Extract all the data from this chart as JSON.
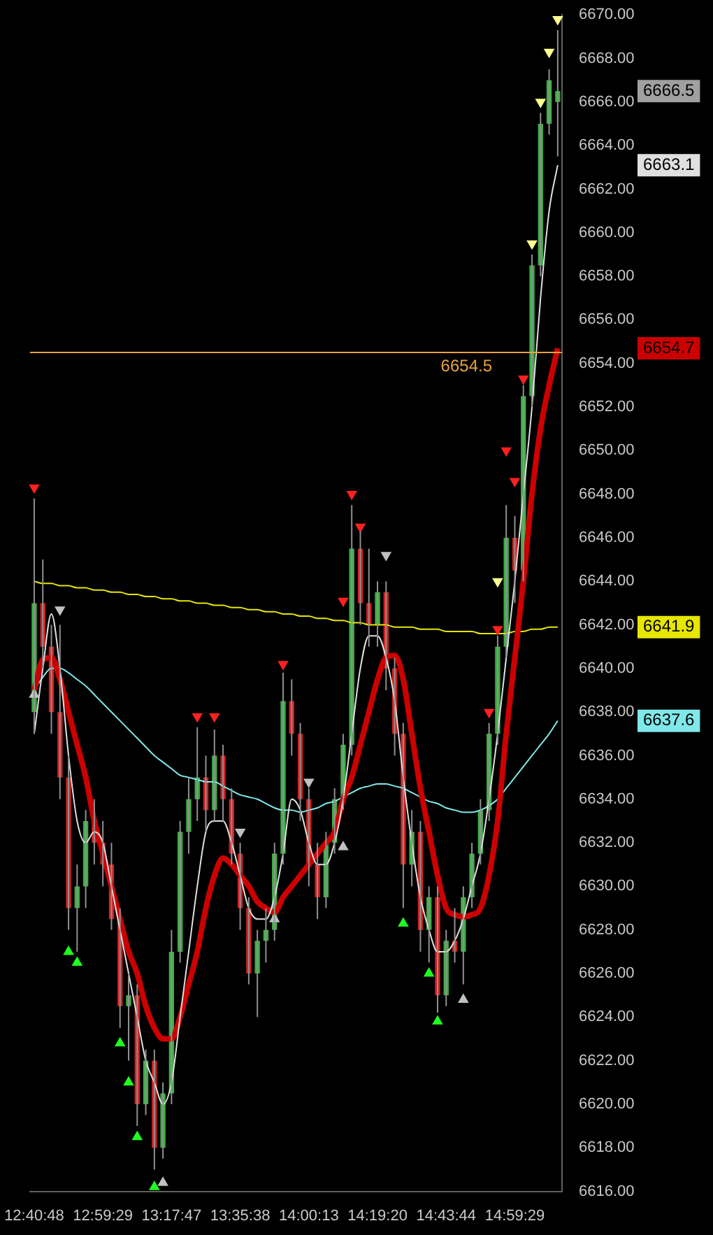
{
  "chart_data": {
    "type": "candlestick",
    "categories": [
      "12:40:48",
      null,
      null,
      null,
      null,
      null,
      null,
      null,
      "12:59:29",
      null,
      null,
      null,
      null,
      null,
      null,
      null,
      "13:17:47",
      null,
      null,
      null,
      null,
      null,
      null,
      null,
      "13:35:38",
      null,
      null,
      null,
      null,
      null,
      null,
      null,
      "14:00:13",
      null,
      null,
      null,
      null,
      null,
      null,
      null,
      "14:19:20",
      null,
      null,
      null,
      null,
      null,
      null,
      null,
      "14:43:44",
      null,
      null,
      null,
      null,
      null,
      null,
      null,
      "14:59:29",
      null,
      null,
      null,
      null,
      null
    ],
    "ohlc": [
      [
        6638,
        6647.8,
        6637,
        6643
      ],
      [
        6643,
        6645,
        6640,
        6641
      ],
      [
        6641,
        6642,
        6637,
        6638
      ],
      [
        6638,
        6642,
        6634,
        6635
      ],
      [
        6635,
        6636,
        6628,
        6629
      ],
      [
        6629,
        6631,
        6627,
        6630
      ],
      [
        6630,
        6633.5,
        6629,
        6633
      ],
      [
        6633,
        6634,
        6631,
        6632
      ],
      [
        6632,
        6633,
        6630,
        6631
      ],
      [
        6631,
        6632,
        6628,
        6628.5
      ],
      [
        6628.5,
        6629,
        6623.5,
        6624.5
      ],
      [
        6624.5,
        6626,
        6622,
        6625
      ],
      [
        6625,
        6625.5,
        6619,
        6620
      ],
      [
        6620,
        6622.5,
        6619.5,
        6622
      ],
      [
        6622,
        6622.5,
        6617,
        6618
      ],
      [
        6618,
        6621,
        6617.5,
        6620.5
      ],
      [
        6620.5,
        6628,
        6620,
        6627
      ],
      [
        6627,
        6633,
        6626.5,
        6632.5
      ],
      [
        6632.5,
        6635,
        6631.5,
        6634
      ],
      [
        6634,
        6637.3,
        6633,
        6635
      ],
      [
        6635,
        6636,
        6632.5,
        6633.5
      ],
      [
        6633.5,
        6637.2,
        6633,
        6636
      ],
      [
        6636,
        6636.5,
        6633,
        6634
      ],
      [
        6634,
        6634.5,
        6631,
        6631.5
      ],
      [
        6631.5,
        6632,
        6628,
        6629
      ],
      [
        6629,
        6629.5,
        6625.5,
        6626
      ],
      [
        6626,
        6628,
        6624,
        6627.5
      ],
      [
        6627.5,
        6629,
        6626.5,
        6628
      ],
      [
        6628,
        6632,
        6627.5,
        6631.5
      ],
      [
        6631.5,
        6639.8,
        6631,
        6638.5
      ],
      [
        6638.5,
        6639.5,
        6636,
        6637
      ],
      [
        6637,
        6637.5,
        6633,
        6634
      ],
      [
        6634,
        6634.5,
        6630,
        6631
      ],
      [
        6631,
        6632,
        6628.5,
        6629.5
      ],
      [
        6629.5,
        6632.5,
        6629,
        6632
      ],
      [
        6632,
        6634.5,
        6631.5,
        6634
      ],
      [
        6634,
        6637,
        6633.5,
        6636.5
      ],
      [
        6636.5,
        6647.5,
        6636,
        6645.5
      ],
      [
        6645.5,
        6646.3,
        6642,
        6643
      ],
      [
        6643,
        6645.5,
        6641,
        6642
      ],
      [
        6642,
        6644,
        6641,
        6643.5
      ],
      [
        6643.5,
        6644,
        6639,
        6640
      ],
      [
        6640,
        6640.5,
        6636,
        6637
      ],
      [
        6637,
        6637.5,
        6629,
        6631
      ],
      [
        6631,
        6633.5,
        6630,
        6632.5
      ],
      [
        6632.5,
        6633,
        6627,
        6628
      ],
      [
        6628,
        6630,
        6626.5,
        6629.5
      ],
      [
        6629.5,
        6630,
        6624.2,
        6625
      ],
      [
        6625,
        6628,
        6624.5,
        6627.5
      ],
      [
        6627.5,
        6629,
        6626.5,
        6627
      ],
      [
        6627,
        6630,
        6625.5,
        6629.5
      ],
      [
        6629.5,
        6632,
        6629,
        6631.5
      ],
      [
        6631.5,
        6634,
        6631,
        6633.5
      ],
      [
        6633.5,
        6637.5,
        6633,
        6637
      ],
      [
        6637,
        6641.5,
        6636.5,
        6641
      ],
      [
        6641,
        6647.5,
        6640.5,
        6646
      ],
      [
        6646,
        6647,
        6643,
        6644.5
      ],
      [
        6644.5,
        6653,
        6644,
        6652.5
      ],
      [
        6652.5,
        6659,
        6652,
        6658.5
      ],
      [
        6658.5,
        6665.5,
        6658,
        6665
      ],
      [
        6665,
        6667.5,
        6664.5,
        6667
      ],
      [
        6666,
        6669.3,
        6663.5,
        6666.5
      ]
    ],
    "colors": [
      "#3cb043",
      "#d42020",
      "#d42020",
      "#d42020",
      "#d42020",
      "#3cb043",
      "#3cb043",
      "#d42020",
      "#d42020",
      "#d42020",
      "#d42020",
      "#3cb043",
      "#d42020",
      "#3cb043",
      "#d42020",
      "#3cb043",
      "#3cb043",
      "#3cb043",
      "#3cb043",
      "#3cb043",
      "#d42020",
      "#3cb043",
      "#d42020",
      "#d42020",
      "#d42020",
      "#d42020",
      "#3cb043",
      "#3cb043",
      "#3cb043",
      "#3cb043",
      "#d42020",
      "#d42020",
      "#d42020",
      "#d42020",
      "#3cb043",
      "#3cb043",
      "#3cb043",
      "#3cb043",
      "#d42020",
      "#d42020",
      "#3cb043",
      "#d42020",
      "#d42020",
      "#d42020",
      "#3cb043",
      "#d42020",
      "#3cb043",
      "#d42020",
      "#3cb043",
      "#d42020",
      "#3cb043",
      "#3cb043",
      "#3cb043",
      "#3cb043",
      "#3cb043",
      "#3cb043",
      "#d42020",
      "#3cb043",
      "#3cb043",
      "#3cb043",
      "#3cb043",
      "#3cb043"
    ],
    "ylim": [
      6616,
      6670
    ],
    "yticks": [
      {
        "value": 6616,
        "label": "6616.00"
      },
      {
        "value": 6618,
        "label": "6618.00"
      },
      {
        "value": 6620,
        "label": "6620.00"
      },
      {
        "value": 6622,
        "label": "6622.00"
      },
      {
        "value": 6624,
        "label": "6624.00"
      },
      {
        "value": 6626,
        "label": "6626.00"
      },
      {
        "value": 6628,
        "label": "6628.00"
      },
      {
        "value": 6630,
        "label": "6630.00"
      },
      {
        "value": 6632,
        "label": "6632.00"
      },
      {
        "value": 6634,
        "label": "6634.00"
      },
      {
        "value": 6636,
        "label": "6636.00"
      },
      {
        "value": 6638,
        "label": "6638.00"
      },
      {
        "value": 6640,
        "label": "6640.00"
      },
      {
        "value": 6642,
        "label": "6642.00"
      },
      {
        "value": 6644,
        "label": "6644.00"
      },
      {
        "value": 6646,
        "label": "6646.00"
      },
      {
        "value": 6648,
        "label": "6648.00"
      },
      {
        "value": 6650,
        "label": "6650.00"
      },
      {
        "value": 6652,
        "label": "6652.00"
      },
      {
        "value": 6654,
        "label": "6654.00"
      },
      {
        "value": 6656,
        "label": "6656.00"
      },
      {
        "value": 6658,
        "label": "6658.00"
      },
      {
        "value": 6660,
        "label": "6660.00"
      },
      {
        "value": 6662,
        "label": "6662.00"
      },
      {
        "value": 6664,
        "label": "6664.00"
      },
      {
        "value": 6666,
        "label": "6666.00"
      },
      {
        "value": 6668,
        "label": "6668.00"
      },
      {
        "value": 6670,
        "label": "6670.00"
      }
    ],
    "grid": false,
    "series": [
      {
        "type": "line",
        "color": "#e0e0e0",
        "marker": "none",
        "values": [
          6637,
          6640,
          6642.5,
          6640,
          6636,
          6633,
          6632,
          6632.5,
          6632,
          6630,
          6628,
          6626,
          6624,
          6622,
          6621,
          6620,
          6621,
          6624,
          6627,
          6630,
          6632.5,
          6633,
          6633,
          6632,
          6630.5,
          6629,
          6628.5,
          6628.5,
          6629.5,
          6631.5,
          6634,
          6633.5,
          6632,
          6631,
          6631,
          6632,
          6634,
          6637,
          6640,
          6641.5,
          6641.5,
          6640.5,
          6638.5,
          6635,
          6632,
          6629.5,
          6628,
          6627,
          6627,
          6627.5,
          6628.5,
          6630,
          6631.5,
          6634,
          6637,
          6640.5,
          6644,
          6648,
          6652,
          6657,
          6661,
          6663.1
        ]
      },
      {
        "type": "line",
        "color": "#cc0000",
        "marker": "none",
        "values": [
          6639,
          6640.4,
          6640.5,
          6639.5,
          6638,
          6636.5,
          6635,
          6633,
          6631.5,
          6630,
          6628.5,
          6627,
          6626,
          6624.5,
          6623.5,
          6623,
          6623,
          6624,
          6625.5,
          6627,
          6629,
          6630.5,
          6631.3,
          6631,
          6630.5,
          6630,
          6629.3,
          6629,
          6628.8,
          6629.5,
          6630,
          6630.5,
          6631,
          6631.5,
          6632,
          6632.5,
          6634,
          6635,
          6636.5,
          6638,
          6639.5,
          6640.5,
          6640.6,
          6639.5,
          6637,
          6634.5,
          6632.5,
          6630.5,
          6629,
          6628.7,
          6628.6,
          6628.7,
          6629,
          6630.5,
          6633,
          6637,
          6640.5,
          6644,
          6648,
          6651,
          6653,
          6654.7
        ]
      },
      {
        "type": "line",
        "color": "#e6e600",
        "marker": "none",
        "values": [
          6644.0,
          6643.9,
          6643.9,
          6643.8,
          6643.8,
          6643.7,
          6643.7,
          6643.6,
          6643.6,
          6643.5,
          6643.5,
          6643.4,
          6643.4,
          6643.3,
          6643.3,
          6643.2,
          6643.2,
          6643.1,
          6643.1,
          6643.0,
          6643.0,
          6642.9,
          6642.9,
          6642.8,
          6642.8,
          6642.7,
          6642.7,
          6642.6,
          6642.6,
          6642.5,
          6642.5,
          6642.4,
          6642.4,
          6642.3,
          6642.3,
          6642.2,
          6642.2,
          6642.1,
          6642.1,
          6642.0,
          6642.0,
          6642.0,
          6641.9,
          6641.9,
          6641.9,
          6641.8,
          6641.8,
          6641.8,
          6641.7,
          6641.7,
          6641.7,
          6641.7,
          6641.6,
          6641.6,
          6641.6,
          6641.6,
          6641.7,
          6641.7,
          6641.8,
          6641.8,
          6641.9,
          6641.9
        ]
      },
      {
        "type": "line",
        "color": "#80e8e8",
        "marker": "none",
        "values": [
          6639,
          6639.6,
          6640,
          6640,
          6639.8,
          6639.5,
          6639.2,
          6638.8,
          6638.4,
          6638,
          6637.6,
          6637.2,
          6636.8,
          6636.4,
          6636,
          6635.7,
          6635.4,
          6635.1,
          6635,
          6634.9,
          6634.8,
          6634.8,
          6634.6,
          6634.4,
          6634.2,
          6634.1,
          6634,
          6633.8,
          6633.6,
          6633.5,
          6633.5,
          6633.4,
          6633.5,
          6633.6,
          6633.8,
          6633.9,
          6634.1,
          6634.3,
          6634.5,
          6634.6,
          6634.7,
          6634.7,
          6634.6,
          6634.5,
          6634.3,
          6634.1,
          6633.9,
          6633.8,
          6633.6,
          6633.5,
          6633.4,
          6633.4,
          6633.5,
          6633.7,
          6634,
          6634.5,
          6635,
          6635.5,
          6636,
          6636.5,
          6637,
          6637.6
        ]
      },
      {
        "type": "scatter",
        "color": "#ff2020",
        "marker": "triangle",
        "values": [
          6648.3,
          null,
          null,
          null,
          null,
          null,
          null,
          null,
          null,
          null,
          null,
          null,
          null,
          null,
          null,
          null,
          null,
          null,
          null,
          6637.8,
          null,
          6637.8,
          null,
          null,
          null,
          null,
          null,
          null,
          null,
          6640.2,
          null,
          null,
          null,
          null,
          null,
          null,
          6643.1,
          6648,
          6646.5,
          null,
          null,
          null,
          null,
          null,
          null,
          null,
          null,
          null,
          null,
          null,
          null,
          null,
          null,
          6638,
          6641.8,
          6650,
          6648.6,
          6653.3,
          null,
          null,
          null,
          null
        ]
      },
      {
        "type": "scatter",
        "color": "#20ff20",
        "marker": "triangle",
        "values": [
          null,
          null,
          null,
          null,
          6627,
          6626.5,
          null,
          null,
          null,
          null,
          6622.8,
          6621,
          6618.5,
          null,
          6616.2,
          null,
          null,
          null,
          null,
          null,
          null,
          null,
          null,
          null,
          null,
          null,
          null,
          null,
          null,
          null,
          null,
          null,
          null,
          null,
          null,
          null,
          null,
          null,
          null,
          null,
          null,
          null,
          null,
          6628.3,
          null,
          null,
          6626,
          6623.8,
          null,
          null,
          null,
          null,
          null,
          null,
          null,
          null,
          null,
          null,
          null,
          null,
          null,
          null
        ]
      },
      {
        "type": "scatter",
        "color": "#ffff90",
        "marker": "triangle",
        "values": [
          null,
          null,
          null,
          null,
          null,
          null,
          null,
          null,
          null,
          null,
          null,
          null,
          null,
          null,
          null,
          null,
          null,
          null,
          null,
          null,
          null,
          null,
          null,
          null,
          null,
          null,
          null,
          null,
          null,
          null,
          null,
          null,
          null,
          null,
          null,
          null,
          null,
          null,
          null,
          null,
          null,
          null,
          null,
          null,
          null,
          null,
          null,
          null,
          null,
          null,
          null,
          null,
          null,
          null,
          6644,
          null,
          null,
          null,
          6659.5,
          6666,
          6668.3,
          6669.8
        ]
      },
      {
        "type": "scatter",
        "color": "#c0c0c0",
        "marker": "triangle",
        "values": [
          null,
          null,
          null,
          6642.7,
          null,
          null,
          null,
          null,
          null,
          null,
          null,
          null,
          null,
          null,
          null,
          null,
          null,
          null,
          null,
          null,
          null,
          null,
          null,
          null,
          6632.5,
          null,
          null,
          null,
          null,
          null,
          null,
          null,
          6634.8,
          null,
          null,
          null,
          null,
          null,
          null,
          null,
          null,
          6645.2,
          null,
          null,
          null,
          null,
          null,
          null,
          null,
          null,
          null,
          null,
          null,
          null,
          null,
          null,
          null,
          null,
          null,
          null,
          null,
          null
        ]
      },
      {
        "type": "scatter",
        "color": "#c0c0c0",
        "marker": "triangle",
        "values": [
          6638.8,
          null,
          null,
          null,
          null,
          null,
          null,
          null,
          null,
          null,
          null,
          null,
          null,
          null,
          null,
          6616.4,
          null,
          null,
          null,
          null,
          null,
          null,
          null,
          null,
          null,
          null,
          null,
          null,
          6628.5,
          null,
          null,
          null,
          null,
          null,
          null,
          null,
          6631.8,
          null,
          null,
          null,
          null,
          null,
          null,
          null,
          null,
          null,
          null,
          null,
          null,
          null,
          6624.8,
          null,
          null,
          null,
          null,
          null,
          null,
          null,
          null,
          null,
          null,
          null
        ]
      }
    ],
    "ref_lines": [
      {
        "axis": "y",
        "value": 6654.5,
        "label": "6654.5",
        "color": "#e8a040"
      }
    ],
    "annotations": [
      "6666.5",
      "6663.1",
      "6654.7",
      "6641.9",
      "6637.6"
    ]
  }
}
